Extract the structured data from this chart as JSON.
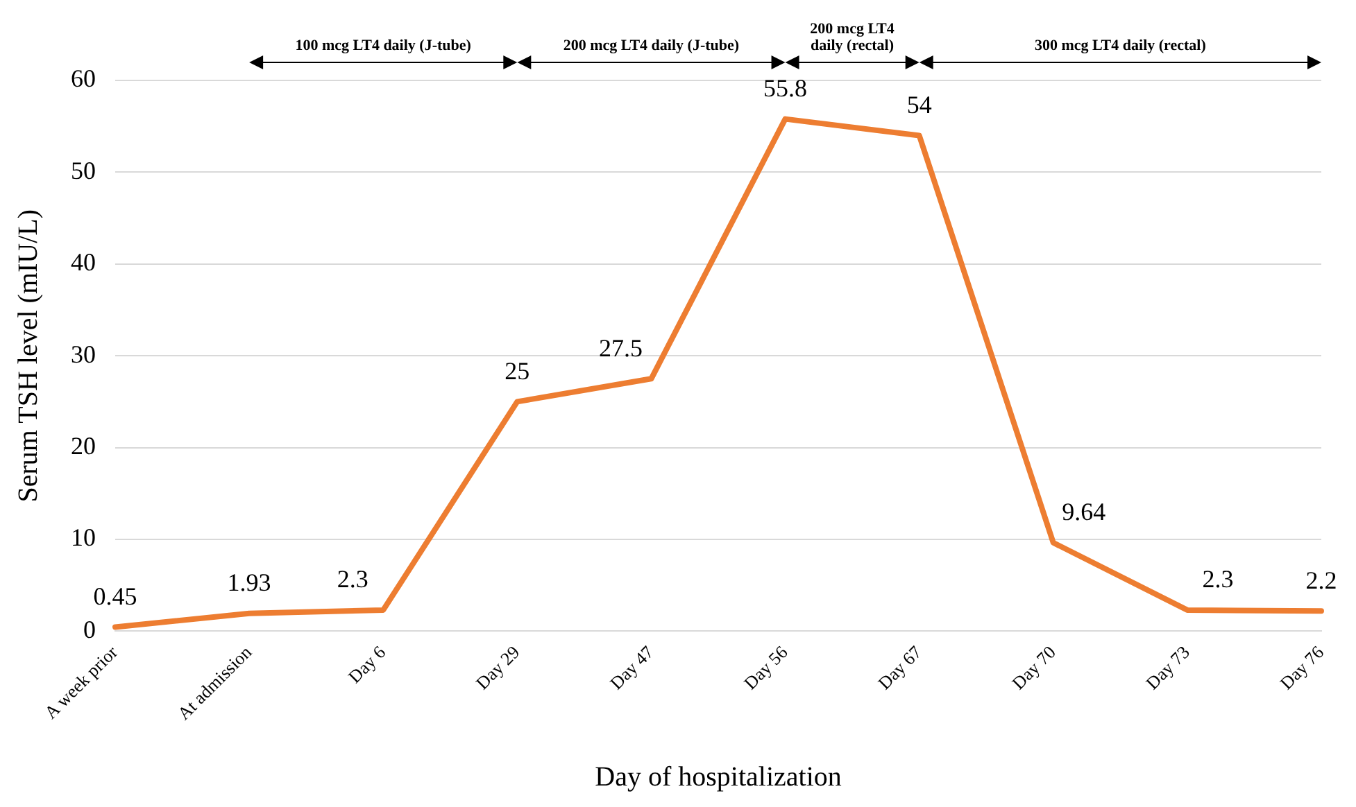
{
  "chart_data": {
    "type": "line",
    "xlabel": "Day of hospitalization",
    "ylabel": "Serum TSH level (mIU/L)",
    "categories": [
      "A week prior",
      "At admission",
      "Day 6",
      "Day 29",
      "Day 47",
      "Day 56",
      "Day 67",
      "Day 70",
      "Day 73",
      "Day 76"
    ],
    "series": [
      {
        "color": "#ed7d31",
        "values": [
          0.45,
          1.93,
          2.3,
          25,
          27.5,
          55.8,
          54,
          9.64,
          2.3,
          2.2
        ]
      }
    ],
    "ylim": [
      0,
      60
    ],
    "yticks": [
      0,
      10,
      20,
      30,
      40,
      50,
      60
    ],
    "grid": "y",
    "legend": false,
    "marker": "none",
    "line_style": "solid",
    "data_labels": true,
    "annotations": [
      "100 mcg LT4 daily (J-tube)",
      "200 mcg LT4 daily (J-tube)",
      "200 mcg LT4 daily (rectal)",
      "300 mcg LT4 daily (rectal)"
    ]
  }
}
